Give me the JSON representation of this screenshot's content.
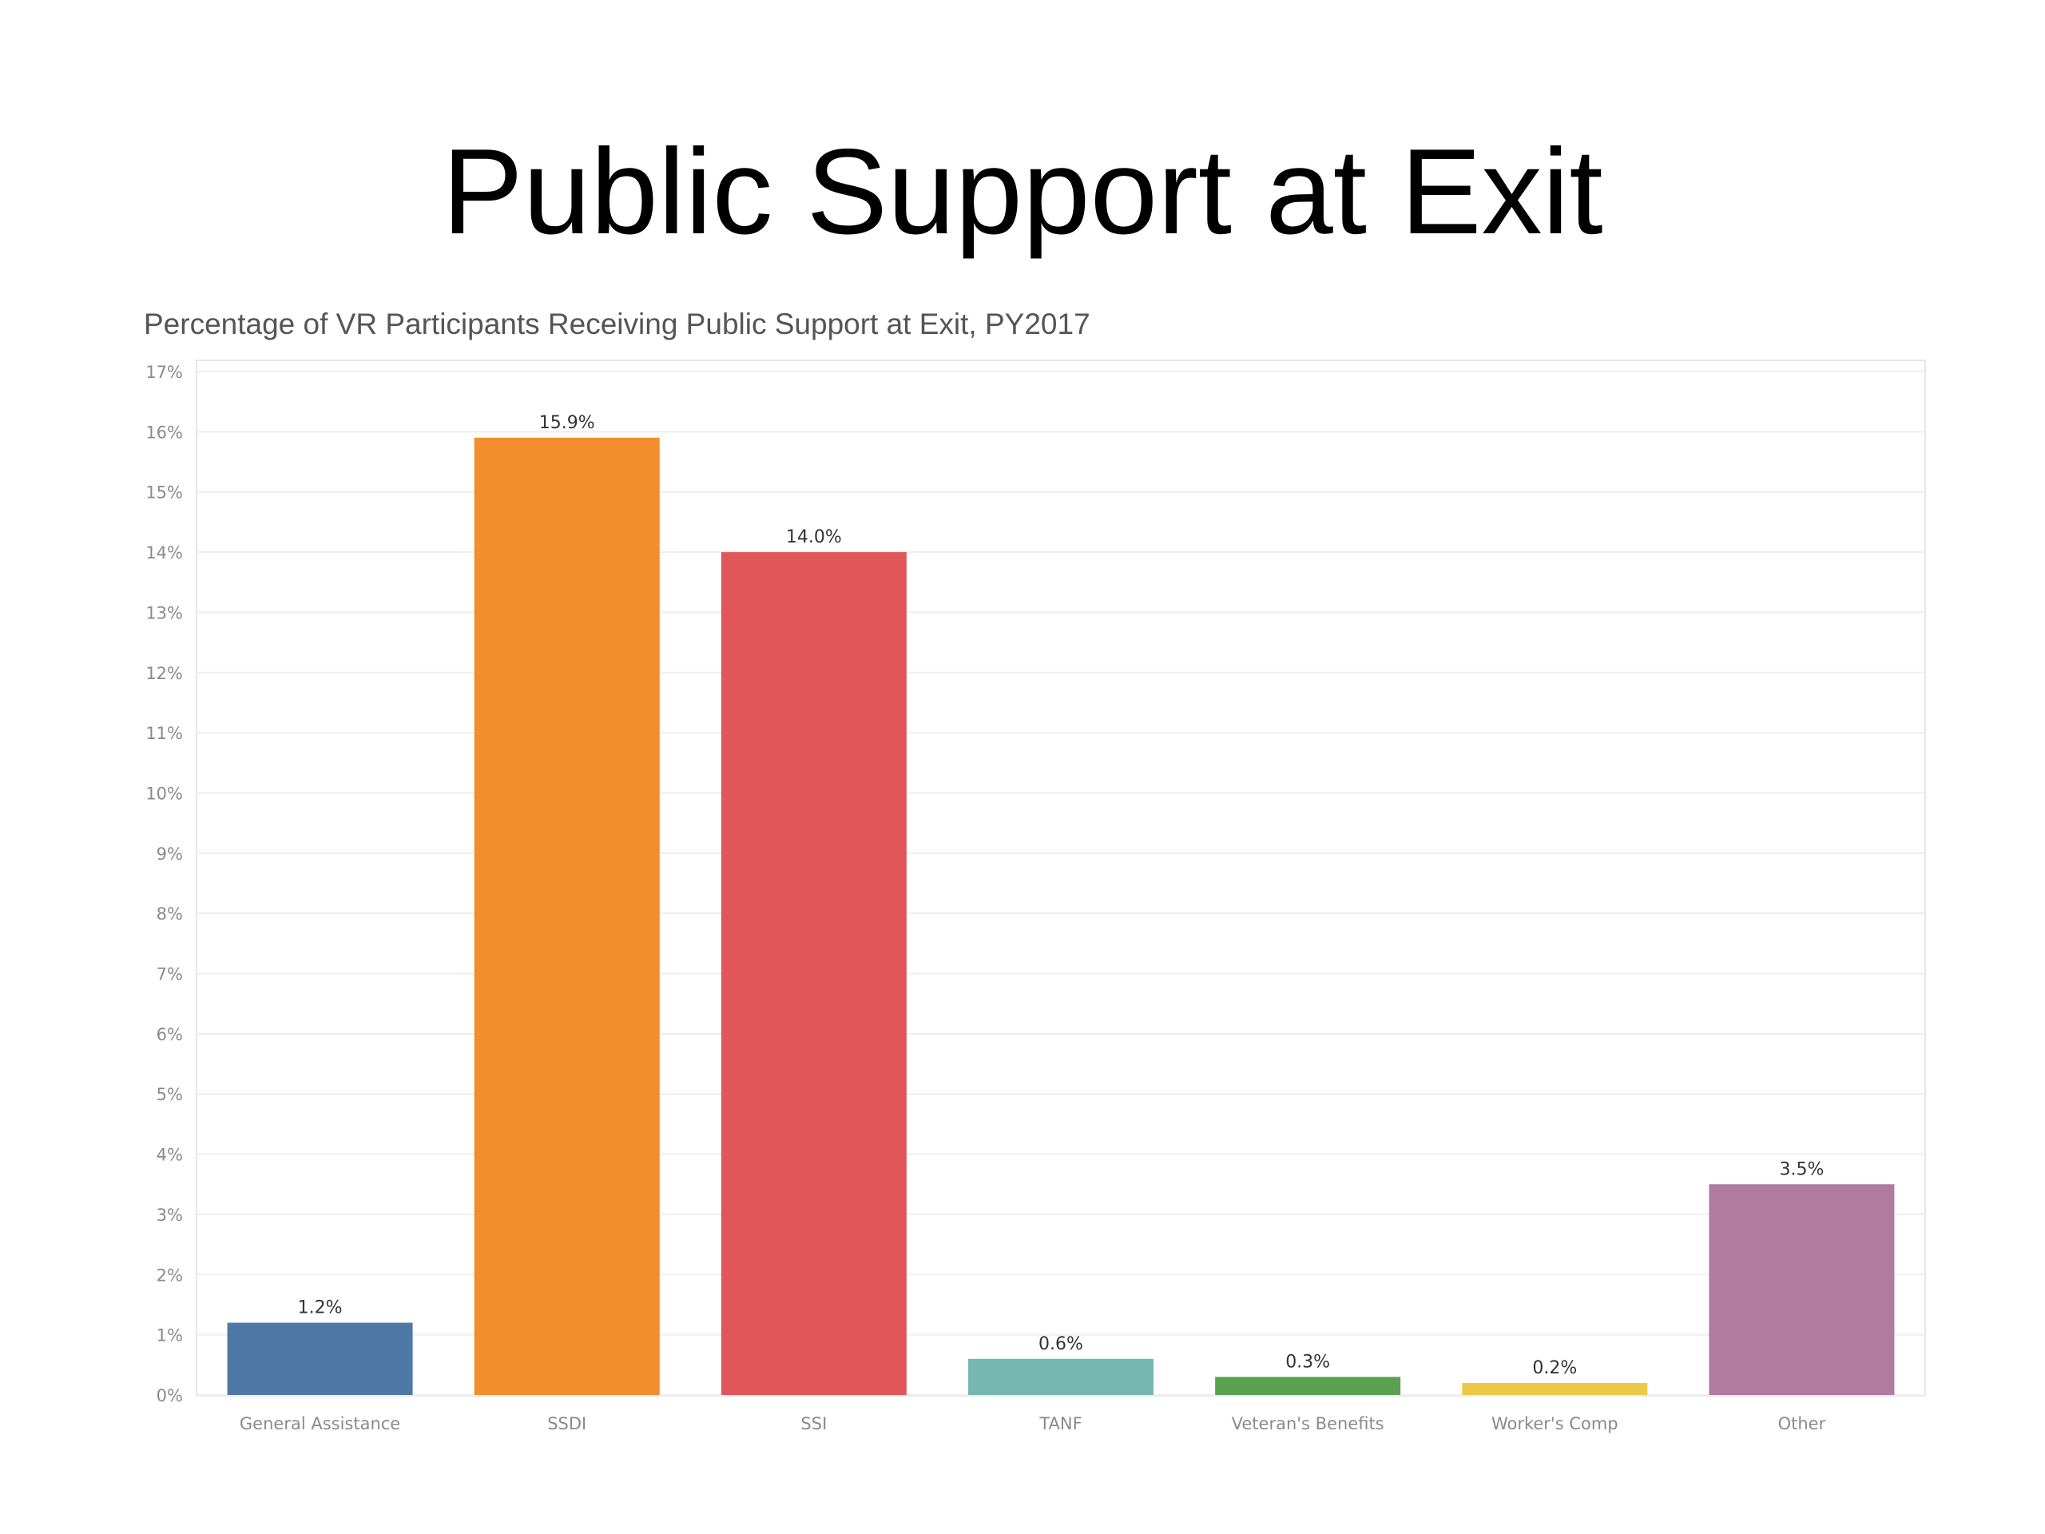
{
  "slide": {
    "title": "Public Support at Exit"
  },
  "chart_data": {
    "type": "bar",
    "title": "Percentage of VR Participants Receiving Public Support at Exit, PY2017",
    "xlabel": "",
    "ylabel": "",
    "ylim": [
      0,
      17
    ],
    "y_ticks": [
      0,
      1,
      2,
      3,
      4,
      5,
      6,
      7,
      8,
      9,
      10,
      11,
      12,
      13,
      14,
      15,
      16,
      17
    ],
    "y_tick_format": "percent",
    "grid": true,
    "categories": [
      "General Assistance",
      "SSDI",
      "SSI",
      "TANF",
      "Veteran's Benefits",
      "Worker's Comp",
      "Other"
    ],
    "values": [
      1.2,
      15.9,
      14.0,
      0.6,
      0.3,
      0.2,
      3.5
    ],
    "data_labels": [
      "1.2%",
      "15.9%",
      "14.0%",
      "0.6%",
      "0.3%",
      "0.2%",
      "3.5%"
    ],
    "colors": [
      "#4e79a7",
      "#f28e2b",
      "#e15759",
      "#76b7b2",
      "#59a14f",
      "#edc948",
      "#b07aa1"
    ]
  }
}
